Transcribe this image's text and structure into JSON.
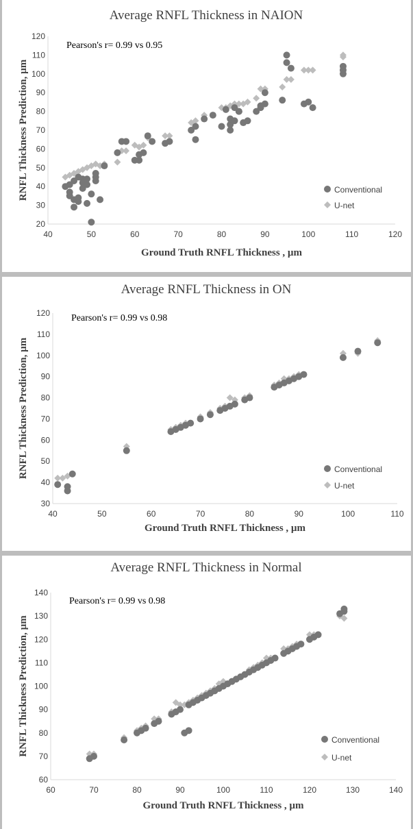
{
  "colors": {
    "conventional": "#777777",
    "unet": "#bdbdbd",
    "axis": "#d9d9d9",
    "text": "#404040"
  },
  "chart_data": [
    {
      "type": "scatter",
      "title": "Average  RNFL Thickness  in NAION",
      "annotation": "Pearson's r= 0.99 vs 0.95",
      "xlabel": "Ground Truth RNFL Thickness , µm",
      "ylabel": "RNFL Thickness Prediction, µm",
      "xlim": [
        40,
        120
      ],
      "ylim": [
        20,
        120
      ],
      "xticks": [
        40,
        50,
        60,
        70,
        80,
        90,
        100,
        110,
        120
      ],
      "yticks": [
        20,
        30,
        40,
        50,
        60,
        70,
        80,
        90,
        100,
        110,
        120
      ],
      "legend": [
        "Conventional",
        "U-net"
      ],
      "series": [
        {
          "name": "Conventional",
          "marker": "circle",
          "points": [
            [
              44,
              40
            ],
            [
              45,
              41
            ],
            [
              45,
              37
            ],
            [
              45,
              35
            ],
            [
              46,
              43
            ],
            [
              46,
              33
            ],
            [
              46,
              29
            ],
            [
              47,
              45
            ],
            [
              47,
              32
            ],
            [
              47,
              34
            ],
            [
              48,
              39
            ],
            [
              48,
              44
            ],
            [
              48,
              42
            ],
            [
              49,
              41
            ],
            [
              49,
              31
            ],
            [
              49,
              44
            ],
            [
              50,
              21
            ],
            [
              50,
              36
            ],
            [
              51,
              43
            ],
            [
              51,
              45
            ],
            [
              51,
              47
            ],
            [
              52,
              33
            ],
            [
              53,
              51
            ],
            [
              56,
              58
            ],
            [
              57,
              64
            ],
            [
              58,
              64
            ],
            [
              60,
              54
            ],
            [
              61,
              54
            ],
            [
              61,
              57
            ],
            [
              62,
              58
            ],
            [
              63,
              67
            ],
            [
              64,
              64
            ],
            [
              67,
              63
            ],
            [
              68,
              64
            ],
            [
              73,
              70
            ],
            [
              74,
              72
            ],
            [
              74,
              65
            ],
            [
              76,
              76
            ],
            [
              78,
              78
            ],
            [
              80,
              72
            ],
            [
              81,
              81
            ],
            [
              82,
              70
            ],
            [
              82,
              73
            ],
            [
              82,
              76
            ],
            [
              83,
              75
            ],
            [
              83,
              82
            ],
            [
              84,
              80
            ],
            [
              84,
              80
            ],
            [
              85,
              74
            ],
            [
              86,
              75
            ],
            [
              88,
              80
            ],
            [
              89,
              82
            ],
            [
              89,
              83
            ],
            [
              90,
              84
            ],
            [
              90,
              90
            ],
            [
              94,
              86
            ],
            [
              95,
              110
            ],
            [
              95,
              106
            ],
            [
              96,
              103
            ],
            [
              99,
              84
            ],
            [
              100,
              85
            ],
            [
              101,
              82
            ],
            [
              108,
              100
            ],
            [
              108,
              102
            ],
            [
              108,
              104
            ]
          ]
        },
        {
          "name": "U-net",
          "marker": "diamond",
          "points": [
            [
              44,
              45
            ],
            [
              45,
              46
            ],
            [
              46,
              47
            ],
            [
              47,
              48
            ],
            [
              48,
              49
            ],
            [
              49,
              50
            ],
            [
              50,
              51
            ],
            [
              51,
              52
            ],
            [
              52,
              51
            ],
            [
              53,
              52
            ],
            [
              56,
              53
            ],
            [
              57,
              59
            ],
            [
              58,
              59
            ],
            [
              60,
              62
            ],
            [
              61,
              61
            ],
            [
              62,
              62
            ],
            [
              63,
              66
            ],
            [
              64,
              64
            ],
            [
              67,
              67
            ],
            [
              68,
              67
            ],
            [
              73,
              74
            ],
            [
              74,
              75
            ],
            [
              76,
              78
            ],
            [
              78,
              78
            ],
            [
              80,
              82
            ],
            [
              81,
              82
            ],
            [
              82,
              83
            ],
            [
              83,
              84
            ],
            [
              84,
              84
            ],
            [
              85,
              84
            ],
            [
              86,
              85
            ],
            [
              88,
              87
            ],
            [
              89,
              92
            ],
            [
              90,
              92
            ],
            [
              94,
              93
            ],
            [
              95,
              97
            ],
            [
              96,
              97
            ],
            [
              99,
              102
            ],
            [
              100,
              102
            ],
            [
              101,
              102
            ],
            [
              108,
              109
            ],
            [
              108,
              110
            ]
          ]
        }
      ]
    },
    {
      "type": "scatter",
      "title": "Average  RNFL Thickness  in ON",
      "annotation": "Pearson's r= 0.99 vs 0.98",
      "xlabel": "Ground Truth RNFL Thickness , µm",
      "ylabel": "RNFL Thickness Prediction, µm",
      "xlim": [
        40,
        110
      ],
      "ylim": [
        30,
        120
      ],
      "xticks": [
        40,
        50,
        60,
        70,
        80,
        90,
        100,
        110
      ],
      "yticks": [
        30,
        40,
        50,
        60,
        70,
        80,
        90,
        100,
        110,
        120
      ],
      "legend": [
        "Conventional",
        "U-net"
      ],
      "series": [
        {
          "name": "Conventional",
          "marker": "circle",
          "points": [
            [
              41,
              39
            ],
            [
              43,
              38
            ],
            [
              43,
              36
            ],
            [
              44,
              44
            ],
            [
              55,
              55
            ],
            [
              64,
              64
            ],
            [
              65,
              65
            ],
            [
              66,
              66
            ],
            [
              67,
              67
            ],
            [
              68,
              68
            ],
            [
              70,
              70
            ],
            [
              72,
              72
            ],
            [
              74,
              74
            ],
            [
              75,
              75
            ],
            [
              76,
              76
            ],
            [
              77,
              77
            ],
            [
              79,
              79
            ],
            [
              80,
              80
            ],
            [
              85,
              85
            ],
            [
              86,
              86
            ],
            [
              87,
              87
            ],
            [
              88,
              88
            ],
            [
              89,
              89
            ],
            [
              90,
              90
            ],
            [
              91,
              91
            ],
            [
              99,
              99
            ],
            [
              102,
              102
            ],
            [
              106,
              106
            ]
          ]
        },
        {
          "name": "U-net",
          "marker": "diamond",
          "points": [
            [
              41,
              42
            ],
            [
              42,
              42
            ],
            [
              43,
              43
            ],
            [
              44,
              44
            ],
            [
              55,
              57
            ],
            [
              64,
              65
            ],
            [
              65,
              66
            ],
            [
              66,
              67
            ],
            [
              67,
              68
            ],
            [
              68,
              68
            ],
            [
              70,
              71
            ],
            [
              72,
              73
            ],
            [
              74,
              75
            ],
            [
              75,
              76
            ],
            [
              76,
              80
            ],
            [
              77,
              79
            ],
            [
              79,
              80
            ],
            [
              80,
              81
            ],
            [
              85,
              86
            ],
            [
              86,
              87
            ],
            [
              87,
              89
            ],
            [
              88,
              89
            ],
            [
              89,
              90
            ],
            [
              90,
              91
            ],
            [
              91,
              91
            ],
            [
              99,
              101
            ],
            [
              102,
              101
            ],
            [
              106,
              107
            ]
          ]
        }
      ]
    },
    {
      "type": "scatter",
      "title": "Average  RNFL Thickness  in Normal",
      "annotation": "Pearson's r= 0.99 vs 0.98",
      "xlabel": "Ground Truth RNFL Thickness , µm",
      "ylabel": "RNFL Thickness Prediction, µm",
      "xlim": [
        60,
        140
      ],
      "ylim": [
        60,
        140
      ],
      "xticks": [
        60,
        70,
        80,
        90,
        100,
        110,
        120,
        130,
        140
      ],
      "yticks": [
        60,
        70,
        80,
        90,
        100,
        110,
        120,
        130,
        140
      ],
      "legend": [
        "Conventional",
        "U-net"
      ],
      "series": [
        {
          "name": "Conventional",
          "marker": "circle",
          "points": [
            [
              69,
              69
            ],
            [
              70,
              70
            ],
            [
              77,
              77
            ],
            [
              80,
              80
            ],
            [
              81,
              81
            ],
            [
              82,
              82
            ],
            [
              84,
              84
            ],
            [
              85,
              85
            ],
            [
              88,
              88
            ],
            [
              89,
              89
            ],
            [
              90,
              90
            ],
            [
              91,
              80
            ],
            [
              92,
              81
            ],
            [
              92,
              92
            ],
            [
              93,
              93
            ],
            [
              94,
              94
            ],
            [
              95,
              95
            ],
            [
              96,
              96
            ],
            [
              97,
              97
            ],
            [
              98,
              98
            ],
            [
              99,
              99
            ],
            [
              100,
              100
            ],
            [
              101,
              101
            ],
            [
              102,
              102
            ],
            [
              103,
              103
            ],
            [
              104,
              104
            ],
            [
              105,
              105
            ],
            [
              106,
              106
            ],
            [
              107,
              107
            ],
            [
              108,
              108
            ],
            [
              109,
              109
            ],
            [
              110,
              110
            ],
            [
              111,
              111
            ],
            [
              112,
              112
            ],
            [
              114,
              114
            ],
            [
              115,
              115
            ],
            [
              116,
              116
            ],
            [
              117,
              117
            ],
            [
              118,
              118
            ],
            [
              120,
              120
            ],
            [
              121,
              121
            ],
            [
              122,
              122
            ],
            [
              127,
              131
            ],
            [
              128,
              132
            ],
            [
              128,
              133
            ]
          ]
        },
        {
          "name": "U-net",
          "marker": "diamond",
          "points": [
            [
              69,
              71
            ],
            [
              70,
              71
            ],
            [
              77,
              78
            ],
            [
              80,
              81
            ],
            [
              81,
              82
            ],
            [
              82,
              83
            ],
            [
              84,
              86
            ],
            [
              85,
              86
            ],
            [
              88,
              89
            ],
            [
              89,
              93
            ],
            [
              90,
              92
            ],
            [
              91,
              92
            ],
            [
              92,
              93
            ],
            [
              93,
              94
            ],
            [
              94,
              95
            ],
            [
              95,
              96
            ],
            [
              96,
              97
            ],
            [
              97,
              98
            ],
            [
              98,
              99
            ],
            [
              99,
              101
            ],
            [
              100,
              102
            ],
            [
              101,
              101
            ],
            [
              102,
              102
            ],
            [
              103,
              103
            ],
            [
              104,
              104
            ],
            [
              105,
              105
            ],
            [
              106,
              107
            ],
            [
              107,
              108
            ],
            [
              108,
              109
            ],
            [
              109,
              110
            ],
            [
              110,
              112
            ],
            [
              111,
              112
            ],
            [
              112,
              112
            ],
            [
              114,
              116
            ],
            [
              115,
              116
            ],
            [
              116,
              117
            ],
            [
              117,
              118
            ],
            [
              118,
              118
            ],
            [
              120,
              122
            ],
            [
              121,
              122
            ],
            [
              122,
              122
            ],
            [
              127,
              130
            ],
            [
              128,
              129
            ]
          ]
        }
      ]
    }
  ]
}
